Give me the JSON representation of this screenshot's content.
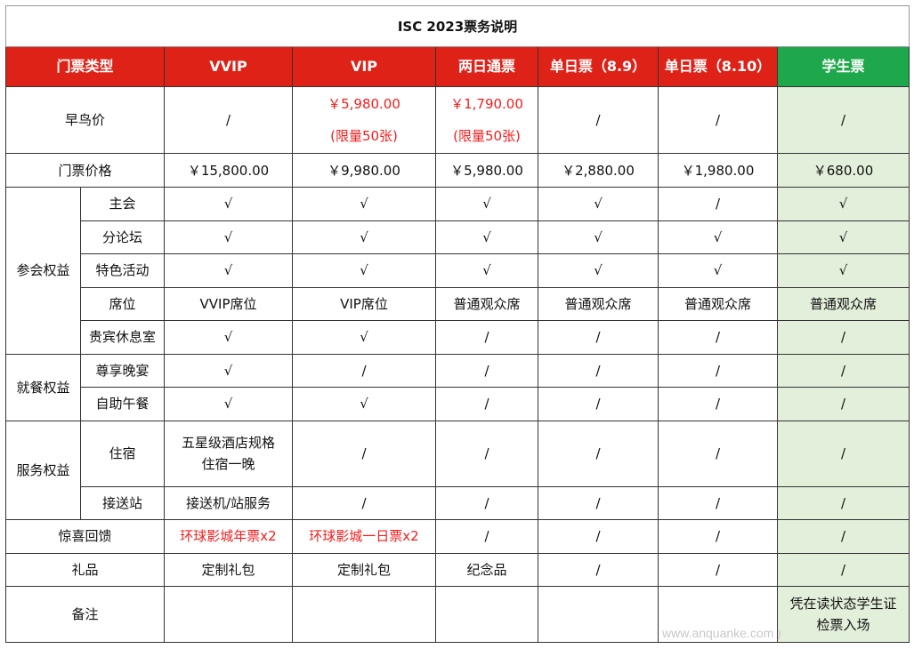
{
  "title": "ISC 2023票务说明",
  "header": [
    "门票类型",
    "VVIP",
    "VIP",
    "两日通票",
    "单日票（8.9）",
    "单日票（8.10）",
    "学生票"
  ],
  "early_bird": {
    "label": "早鸟价",
    "values": [
      "/",
      "￥5,980.00",
      "￥1,790.00",
      "/",
      "/",
      "/"
    ],
    "notes": [
      "",
      "(限量50张)",
      "(限量50张)",
      "",
      "",
      ""
    ]
  },
  "price": {
    "label": "门票价格",
    "values": [
      "￥15,800.00",
      "￥9,980.00",
      "￥5,980.00",
      "￥2,880.00",
      "￥1,980.00",
      "￥680.00"
    ]
  },
  "groups": [
    {
      "label": "参会权益",
      "rows": [
        {
          "label": "主会",
          "values": [
            "√",
            "√",
            "√",
            "√",
            "/",
            "√"
          ]
        },
        {
          "label": "分论坛",
          "values": [
            "√",
            "√",
            "√",
            "√",
            "√",
            "√"
          ]
        },
        {
          "label": "特色活动",
          "values": [
            "√",
            "√",
            "√",
            "√",
            "√",
            "√"
          ]
        },
        {
          "label": "席位",
          "values": [
            "VVIP席位",
            "VIP席位",
            "普通观众席",
            "普通观众席",
            "普通观众席",
            "普通观众席"
          ]
        },
        {
          "label": "贵宾休息室",
          "values": [
            "√",
            "√",
            "/",
            "/",
            "/",
            "/"
          ]
        }
      ]
    },
    {
      "label": "就餐权益",
      "rows": [
        {
          "label": "尊享晚宴",
          "values": [
            "√",
            "/",
            "/",
            "/",
            "/",
            "/"
          ]
        },
        {
          "label": "自助午餐",
          "values": [
            "√",
            "√",
            "/",
            "/",
            "/",
            "/"
          ]
        }
      ]
    },
    {
      "label": "服务权益",
      "rows": [
        {
          "label": "住宿",
          "values": [
            "五星级酒店规格\n住宿一晚",
            "/",
            "/",
            "/",
            "/",
            "/"
          ]
        },
        {
          "label": "接送站",
          "values": [
            "接送机/站服务",
            "/",
            "/",
            "/",
            "/",
            "/"
          ]
        }
      ]
    }
  ],
  "surprise": {
    "label": "惊喜回馈",
    "values": [
      "环球影城年票x2",
      "环球影城一日票x2",
      "/",
      "/",
      "/",
      "/"
    ]
  },
  "gift": {
    "label": "礼品",
    "values": [
      "定制礼包",
      "定制礼包",
      "纪念品",
      "/",
      "/",
      "/"
    ]
  },
  "remarks": {
    "label": "备注",
    "values": [
      "",
      "",
      "",
      "",
      "",
      "凭在读状态学生证\n检票入场"
    ]
  },
  "watermark": "www.anquanke.com )",
  "colors": {
    "header_red": "#df2218",
    "student_green": "#1fa84b",
    "student_column": "#e2efda",
    "highlight_text": "#f41c1c"
  }
}
